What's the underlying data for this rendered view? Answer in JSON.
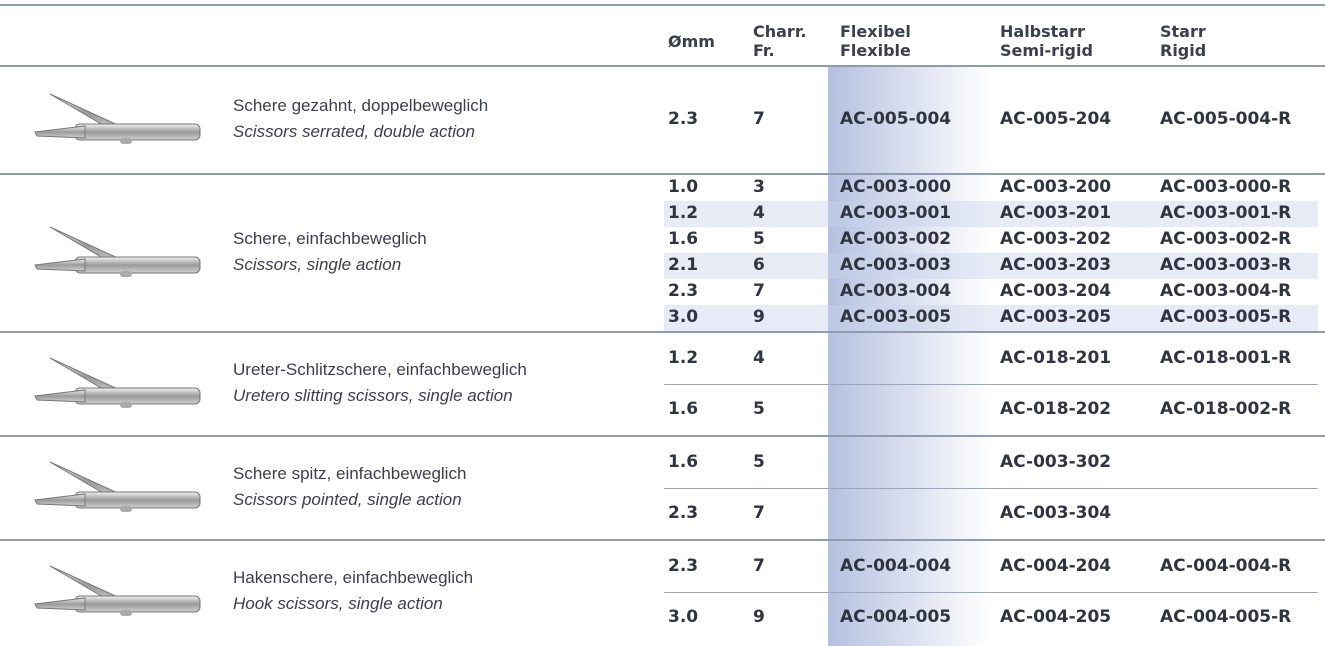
{
  "header": {
    "columns": [
      [
        "Ømm"
      ],
      [
        "Charr.",
        "Fr."
      ],
      [
        "Flexibel",
        "Flexible"
      ],
      [
        "Halbstarr",
        "Semi-rigid"
      ],
      [
        "Starr",
        "Rigid"
      ]
    ]
  },
  "groups": [
    {
      "name_de": "Schere gezahnt, doppelbeweglich",
      "name_en": "Scissors serrated, double action",
      "rows": [
        [
          "2.3",
          "7",
          "AC-005-004",
          "AC-005-204",
          "AC-005-004-R"
        ]
      ]
    },
    {
      "name_de": "Schere, einfachbeweglich",
      "name_en": "Scissors, single action",
      "rows": [
        [
          "1.0",
          "3",
          "AC-003-000",
          "AC-003-200",
          "AC-003-000-R"
        ],
        [
          "1.2",
          "4",
          "AC-003-001",
          "AC-003-201",
          "AC-003-001-R"
        ],
        [
          "1.6",
          "5",
          "AC-003-002",
          "AC-003-202",
          "AC-003-002-R"
        ],
        [
          "2.1",
          "6",
          "AC-003-003",
          "AC-003-203",
          "AC-003-003-R"
        ],
        [
          "2.3",
          "7",
          "AC-003-004",
          "AC-003-204",
          "AC-003-004-R"
        ],
        [
          "3.0",
          "9",
          "AC-003-005",
          "AC-003-205",
          "AC-003-005-R"
        ]
      ]
    },
    {
      "name_de": "Ureter-Schlitzschere, einfachbeweglich",
      "name_en": "Uretero slitting scissors, single action",
      "rows": [
        [
          "1.2",
          "4",
          null,
          "AC-018-201",
          "AC-018-001-R"
        ],
        [
          "1.6",
          "5",
          null,
          "AC-018-202",
          "AC-018-002-R"
        ]
      ]
    },
    {
      "name_de": "Schere spitz, einfachbeweglich",
      "name_en": "Scissors pointed, single action",
      "rows": [
        [
          "1.6",
          "5",
          null,
          "AC-003-302",
          null
        ],
        [
          "2.3",
          "7",
          null,
          "AC-003-304",
          null
        ]
      ]
    },
    {
      "name_de": "Hakenschere, einfachbeweglich",
      "name_en": "Hook scissors, single action",
      "rows": [
        [
          "2.3",
          "7",
          "AC-004-004",
          "AC-004-204",
          "AC-004-004-R"
        ],
        [
          "3.0",
          "9",
          "AC-004-005",
          "AC-004-205",
          "AC-004-005-R"
        ]
      ]
    }
  ]
}
